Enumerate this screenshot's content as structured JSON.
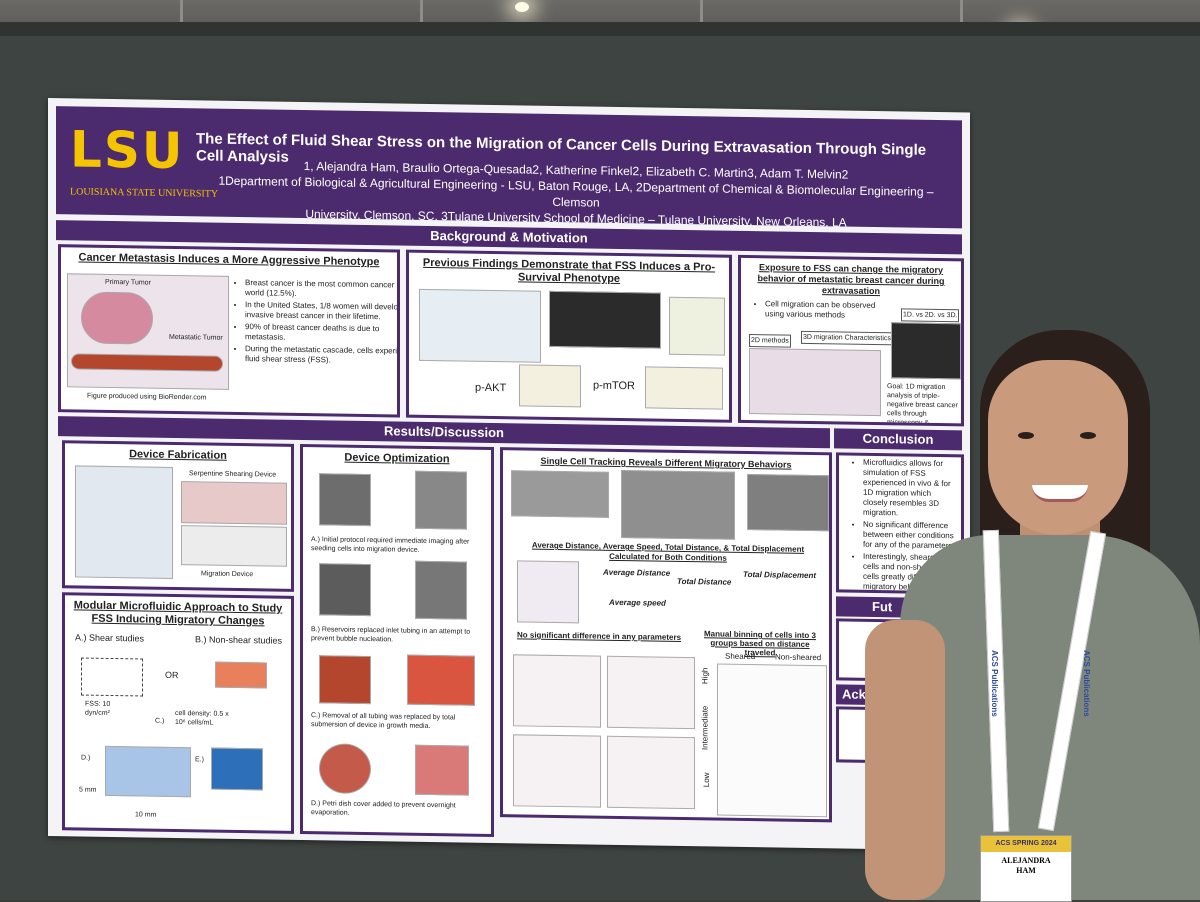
{
  "header": {
    "logo": "LSU",
    "logo_sub": "LOUISIANA STATE UNIVERSITY",
    "title": "The Effect of Fluid Shear Stress on the Migration of Cancer Cells During Extravasation Through Single Cell Analysis",
    "authors_line1": "1, Alejandra Ham, Braulio Ortega-Quesada2, Katherine Finkel2, Elizabeth C. Martin3, Adam T. Melvin2",
    "authors_line2": "1Department of Biological & Agricultural Engineering - LSU, Baton Rouge, LA, 2Department of Chemical & Biomolecular Engineering – Clemson",
    "authors_line3": "University, Clemson, SC, 3Tulane University School of Medicine – Tulane University, New Orleans, LA"
  },
  "sections": {
    "background": "Background & Motivation",
    "results": "Results/Discussion",
    "conclusion": "Conclusion"
  },
  "panels": {
    "metastasis": {
      "title": "Cancer Metastasis Induces a More Aggressive Phenotype",
      "bullets": [
        "Breast cancer is the most common cancer in the world (12.5%).",
        "In the United States, 1/8 women will develop invasive breast cancer in their lifetime.",
        "90% of breast cancer deaths is due to metastasis.",
        "During the metastatic cascade, cells experience, fluid shear stress (FSS)."
      ],
      "caption": "Figure produced using BioRender.com",
      "label_primary": "Primary Tumor",
      "label_metastatic": "Metastatic Tumor"
    },
    "previous": {
      "title": "Previous Findings Demonstrate that FSS Induces a Pro-Survival Phenotype",
      "label_akt": "p-AKT",
      "label_mtor": "p-mTOR"
    },
    "exposure": {
      "title": "Exposure to FSS can change the migratory behavior of metastatic breast cancer during extravasation",
      "bullet": "Cell migration can be observed using various methods",
      "label_2d": "2D methods",
      "label_3d": "3D migration Characteristics",
      "label_1d": "1D. vs 2D. vs 3D.",
      "goal": "Goal: 1D migration analysis of triple-negative breast cancer cells through microscopy & microfluidics"
    },
    "fabrication": {
      "title": "Device Fabrication",
      "device1": "Serpentine Shearing Device",
      "device2": "Migration Device"
    },
    "modular": {
      "title": "Modular Microfluidic Approach to Study FSS Inducing Migratory Changes",
      "a": "A.) Shear studies",
      "b": "B.) Non-shear studies",
      "or": "OR",
      "fss": "FSS: 10 dyn/cm²",
      "c": "C.)",
      "density": "cell density: 0.5 x 10⁶ cells/mL",
      "d": "D.)",
      "e": "E.)",
      "mm5": "5 mm",
      "mm10": "10 mm"
    },
    "optimization": {
      "title": "Device Optimization",
      "a": "A.) Initial protocol required immediate imaging after seeding cells into migration device.",
      "b": "B.) Reservoirs replaced inlet tubing in an attempt to prevent bubble nucleation.",
      "c": "C.) Removal of all tubing was replaced by total submersion of device in growth media.",
      "d": "D.) Petri dish cover added to prevent overnight evaporation."
    },
    "tracking": {
      "title": "Single Cell Tracking Reveals Different Migratory Behaviors",
      "subtitle": "Average Distance, Average Speed, Total Distance, & Total Displacement Calculated for Both Conditions",
      "avg_dist": "Average Distance",
      "total_dist": "Total Distance",
      "total_disp": "Total Displacement",
      "avg_speed": "Average speed",
      "no_sig": "No significant difference in any parameters",
      "binning": "Manual binning of cells into 3 groups based on distance traveled",
      "sheared": "Sheared",
      "non_sheared": "Non-sheared",
      "high": "High",
      "intermediate": "Intermediate",
      "low": "Low"
    },
    "conclusion": {
      "bullets": [
        "Microfluidics allows for simulation of FSS experienced in vivo & for 1D migration which closely resembles 3D migration.",
        "No significant difference between either conditions for any of the parameters",
        "Interestingly, sheared cells and non-sheared cells greatly differed in migratory beh..."
      ],
      "future": "Fut",
      "ack": "Ackn"
    }
  },
  "badge": {
    "event": "ACS SPRING 2024",
    "first": "ALEJANDRA",
    "last": "HAM"
  },
  "lanyard_text": "ACS Publications"
}
